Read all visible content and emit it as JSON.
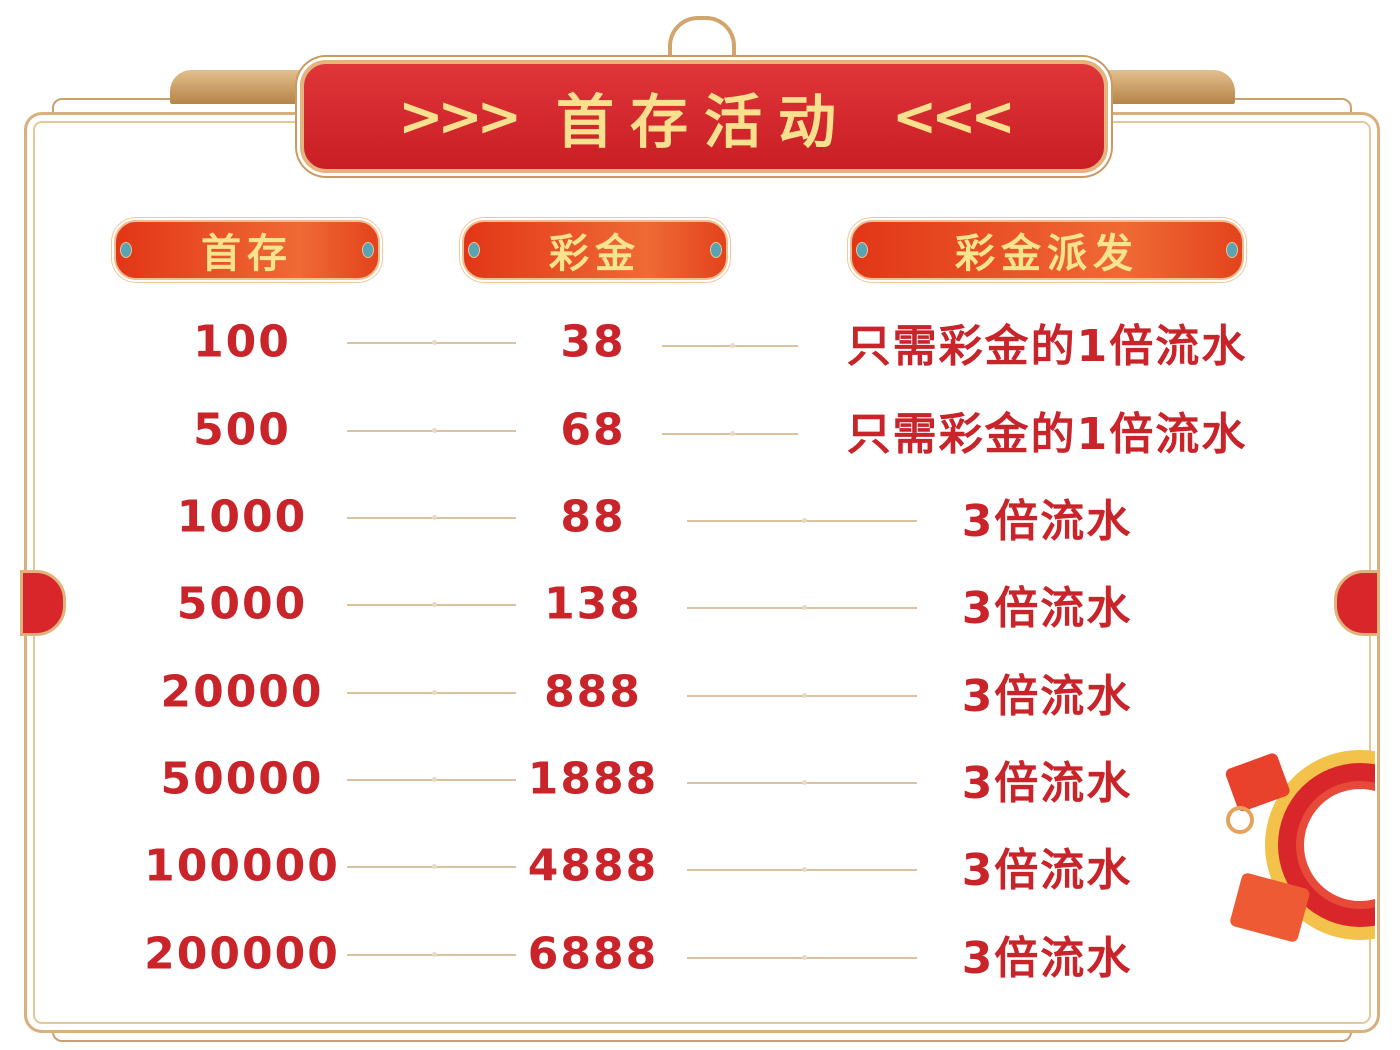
{
  "title": {
    "arrows_left": ">>>",
    "text": "首存活动",
    "arrows_right": "<<<"
  },
  "headers": [
    "首存",
    "彩金",
    "彩金派发"
  ],
  "rows": [
    {
      "deposit": "100",
      "bonus": "38",
      "payout": "只需彩金的1倍流水"
    },
    {
      "deposit": "500",
      "bonus": "68",
      "payout": "只需彩金的1倍流水"
    },
    {
      "deposit": "1000",
      "bonus": "88",
      "payout": "3倍流水"
    },
    {
      "deposit": "5000",
      "bonus": "138",
      "payout": "3倍流水"
    },
    {
      "deposit": "20000",
      "bonus": "888",
      "payout": "3倍流水"
    },
    {
      "deposit": "50000",
      "bonus": "1888",
      "payout": "3倍流水"
    },
    {
      "deposit": "100000",
      "bonus": "4888",
      "payout": "3倍流水"
    },
    {
      "deposit": "200000",
      "bonus": "6888",
      "payout": "3倍流水"
    }
  ],
  "colors": {
    "red": "#c8242a",
    "gold": "#f9e08e",
    "banner": "#d42a2f",
    "frame": "#d9b07c"
  },
  "icons": [
    "red-envelope-coin-decoration"
  ]
}
